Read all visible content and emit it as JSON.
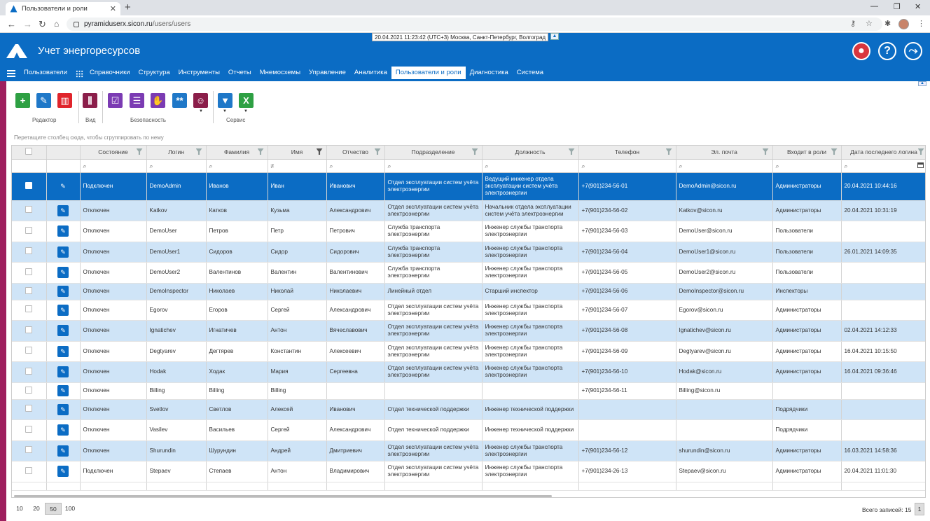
{
  "browser": {
    "tab_title": "Пользователи и роли",
    "url_host": "pyramiduserx.sicon.ru",
    "url_path": "/users/users"
  },
  "app": {
    "title": "Учет энергоресурсов",
    "datetime": "20.04.2021 11:23:42 (UTC+3) Москва, Санкт-Петербург, Волгоград",
    "header_icons": [
      "bell-icon",
      "help-icon",
      "exit-icon"
    ],
    "accent_color": "#0b6cc4",
    "side_color": "#9e1f5e"
  },
  "menu": {
    "user_menu": "Пользователи",
    "items": [
      "Справочники",
      "Структура",
      "Инструменты",
      "Отчеты",
      "Мнемосхемы",
      "Управление",
      "Аналитика",
      "Пользователи и роли",
      "Диагностика",
      "Система"
    ],
    "active": "Пользователи и роли"
  },
  "toolbar": {
    "groups": {
      "editor": "Редактор",
      "view": "Вид",
      "security": "Безопасность",
      "service": "Сервис"
    }
  },
  "grid": {
    "group_hint": "Перетащите столбец сюда, чтобы сгруппировать по нему",
    "columns": [
      "Состояние",
      "Логин",
      "Фамилия",
      "Имя",
      "Отчество",
      "Подразделение",
      "Должность",
      "Телефон",
      "Эл. почта",
      "Входит в роли",
      "Дата последнего логина"
    ],
    "rows": [
      [
        "Подключен",
        "DemoAdmin",
        "Иванов",
        "Иван",
        "Иванович",
        "Отдел эксплуатации систем учёта электроэнергии",
        "Ведущий инженер отдела эксплуатации систем учёта электроэнергии",
        "+7(901)234-56-01",
        "DemoAdmin@sicon.ru",
        "Администраторы",
        "20.04.2021 10:44:16"
      ],
      [
        "Отключен",
        "Katkov",
        "Катков",
        "Кузьма",
        "Александрович",
        "Отдел эксплуатации систем учёта электроэнергии",
        "Начальник отдела эксплуатации систем учёта электроэнергии",
        "+7(901)234-56-02",
        "Katkov@sicon.ru",
        "Администраторы",
        "20.04.2021 10:31:19"
      ],
      [
        "Отключен",
        "DemoUser",
        "Петров",
        "Петр",
        "Петрович",
        "Служба транспорта электроэнергии",
        "Инженер службы транспорта электроэнергии",
        "+7(901)234-56-03",
        "DemoUser@sicon.ru",
        "Пользователи",
        ""
      ],
      [
        "Отключен",
        "DemoUser1",
        "Сидоров",
        "Сидор",
        "Сидорович",
        "Служба транспорта электроэнергии",
        "Инженер службы транспорта электроэнергии",
        "+7(901)234-56-04",
        "DemoUser1@sicon.ru",
        "Пользователи",
        "26.01.2021 14:09:35"
      ],
      [
        "Отключен",
        "DemoUser2",
        "Валентинов",
        "Валентин",
        "Валентинович",
        "Служба транспорта электроэнергии",
        "Инженер службы транспорта электроэнергии",
        "+7(901)234-56-05",
        "DemoUser2@sicon.ru",
        "Пользователи",
        ""
      ],
      [
        "Отключен",
        "DemoInspector",
        "Николаев",
        "Николай",
        "Николаевич",
        "Линейный отдел",
        "Старший инспектор",
        "+7(901)234-56-06",
        "DemoInspector@sicon.ru",
        "Инспекторы",
        ""
      ],
      [
        "Отключен",
        "Egorov",
        "Егоров",
        "Сергей",
        "Александрович",
        "Отдел эксплуатации систем учёта электроэнергии",
        "Инженер службы транспорта электроэнергии",
        "+7(901)234-56-07",
        "Egorov@sicon.ru",
        "Администраторы",
        ""
      ],
      [
        "Отключен",
        "Ignatichev",
        "Игнатичев",
        "Антон",
        "Вячеславович",
        "Отдел эксплуатации систем учёта электроэнергии",
        "Инженер службы транспорта электроэнергии",
        "+7(901)234-56-08",
        "Ignatichev@sicon.ru",
        "Администраторы",
        "02.04.2021 14:12:33"
      ],
      [
        "Отключен",
        "Degtyarev",
        "Дегтярев",
        "Константин",
        "Алексеевич",
        "Отдел эксплуатации систем учёта электроэнергии",
        "Инженер службы транспорта электроэнергии",
        "+7(901)234-56-09",
        "Degtyarev@sicon.ru",
        "Администраторы",
        "16.04.2021 10:15:50"
      ],
      [
        "Отключен",
        "Hodak",
        "Ходак",
        "Мария",
        "Сергеевна",
        "Отдел эксплуатации систем учёта электроэнергии",
        "Инженер службы транспорта электроэнергии",
        "+7(901)234-56-10",
        "Hodak@sicon.ru",
        "Администраторы",
        "16.04.2021 09:36:46"
      ],
      [
        "Отключен",
        "Billing",
        "Billing",
        "Billing",
        "",
        "",
        "",
        "+7(901)234-56-11",
        "Billing@sicon.ru",
        "",
        ""
      ],
      [
        "Отключен",
        "Svetlov",
        "Светлов",
        "Алексей",
        "Иванович",
        "Отдел технической поддержки",
        "Инженер технической поддержки",
        "",
        "",
        "Подрядчики",
        ""
      ],
      [
        "Отключен",
        "Vasilev",
        "Васильев",
        "Сергей",
        "Александрович",
        "Отдел технической поддержки",
        "Инженер технической поддержки",
        "",
        "",
        "Подрядчики",
        ""
      ],
      [
        "Отключен",
        "Shurundin",
        "Шурундин",
        "Андрей",
        "Дмитриевич",
        "Отдел эксплуатации систем учёта электроэнергии",
        "Инженер службы транспорта электроэнергии",
        "+7(901)234-56-12",
        "shurundin@sicon.ru",
        "Администраторы",
        "16.03.2021 14:58:36"
      ],
      [
        "Подключен",
        "Stepaev",
        "Степаев",
        "Антон",
        "Владимирович",
        "Отдел эксплуатации систем учёта электроэнергии",
        "Инженер службы транспорта электроэнергии",
        "+7(901)234-26-13",
        "Stepaev@sicon.ru",
        "Администраторы",
        "20.04.2021 11:01:30"
      ]
    ]
  },
  "pager": {
    "sizes": [
      "10",
      "20",
      "50",
      "100"
    ],
    "current_size": "50",
    "total": "Всего записей: 15",
    "page": "1"
  }
}
